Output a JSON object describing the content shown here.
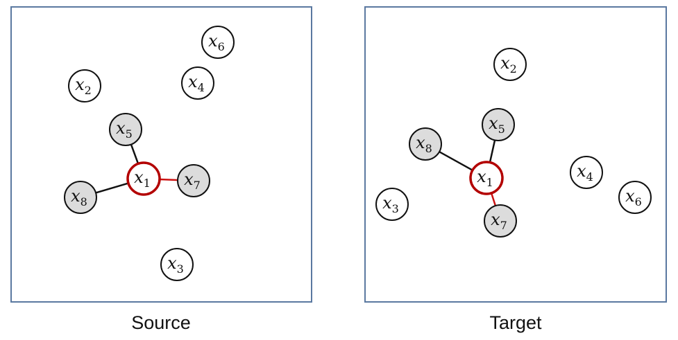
{
  "colors": {
    "panel_border": "#5a78a0",
    "node_stroke": "#111111",
    "node_fill_plain": "#ffffff",
    "node_fill_neighbor": "#dcdcdc",
    "anchor_stroke": "#b30000",
    "edge_plain": "#111111",
    "edge_highlight": "#cc1111"
  },
  "panels": [
    {
      "caption": "Source",
      "nodes": [
        {
          "id": "x1",
          "sym": "x",
          "sub": "1",
          "role": "anchor"
        },
        {
          "id": "x2",
          "sym": "x",
          "sub": "2",
          "role": "plain"
        },
        {
          "id": "x3",
          "sym": "x",
          "sub": "3",
          "role": "plain"
        },
        {
          "id": "x4",
          "sym": "x",
          "sub": "4",
          "role": "plain"
        },
        {
          "id": "x5",
          "sym": "x",
          "sub": "5",
          "role": "neighbor"
        },
        {
          "id": "x6",
          "sym": "x",
          "sub": "6",
          "role": "plain"
        },
        {
          "id": "x7",
          "sym": "x",
          "sub": "7",
          "role": "neighbor"
        },
        {
          "id": "x8",
          "sym": "x",
          "sub": "8",
          "role": "neighbor"
        }
      ],
      "edges": [
        {
          "from": "x1",
          "to": "x5",
          "highlight": false
        },
        {
          "from": "x1",
          "to": "x8",
          "highlight": false
        },
        {
          "from": "x1",
          "to": "x7",
          "highlight": true
        }
      ]
    },
    {
      "caption": "Target",
      "nodes": [
        {
          "id": "x1",
          "sym": "x",
          "sub": "1",
          "role": "anchor"
        },
        {
          "id": "x2",
          "sym": "x",
          "sub": "2",
          "role": "plain"
        },
        {
          "id": "x3",
          "sym": "x",
          "sub": "3",
          "role": "plain"
        },
        {
          "id": "x4",
          "sym": "x",
          "sub": "4",
          "role": "plain"
        },
        {
          "id": "x5",
          "sym": "x",
          "sub": "5",
          "role": "neighbor"
        },
        {
          "id": "x6",
          "sym": "x",
          "sub": "6",
          "role": "plain"
        },
        {
          "id": "x7",
          "sym": "x",
          "sub": "7",
          "role": "neighbor"
        },
        {
          "id": "x8",
          "sym": "x",
          "sub": "8",
          "role": "neighbor"
        }
      ],
      "edges": [
        {
          "from": "x1",
          "to": "x5",
          "highlight": false
        },
        {
          "from": "x1",
          "to": "x8",
          "highlight": false
        },
        {
          "from": "x1",
          "to": "x7",
          "highlight": true
        }
      ]
    }
  ]
}
